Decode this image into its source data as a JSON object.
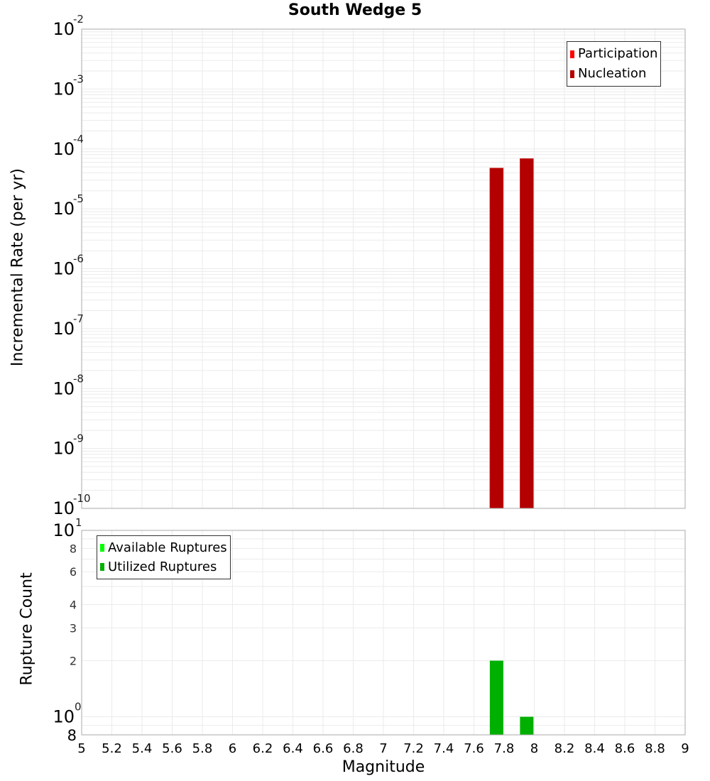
{
  "title": "South Wedge 5",
  "top_plot": {
    "ylabel": "Incremental Rate (per yr)",
    "legend": [
      {
        "label": "Participation",
        "color": "#ff0000"
      },
      {
        "label": "Nucleation",
        "color": "#b30000"
      }
    ]
  },
  "bottom_plot": {
    "ylabel": "Rupture Count",
    "legend": [
      {
        "label": "Available Ruptures",
        "color": "#00ff00"
      },
      {
        "label": "Utilized Ruptures",
        "color": "#00b000"
      }
    ]
  },
  "xlabel": "Magnitude",
  "chart_data": [
    {
      "type": "bar",
      "title": "South Wedge 5",
      "xlabel": "Magnitude",
      "ylabel": "Incremental Rate (per yr)",
      "yscale": "log",
      "xlim": [
        5,
        9
      ],
      "ylim": [
        1e-10,
        0.01
      ],
      "ytick_labels": [
        "10^-2",
        "10^-3",
        "10^-4",
        "10^-5",
        "10^-6",
        "10^-7",
        "10^-8",
        "10^-9",
        "10^-10"
      ],
      "grid": true,
      "legend_position": "upper right",
      "series": [
        {
          "name": "Participation",
          "color": "#ff0000",
          "x": [
            7.75,
            7.95
          ],
          "values": [
            4.8e-05,
            6.9e-05
          ]
        },
        {
          "name": "Nucleation",
          "color": "#b30000",
          "x": [
            7.75,
            7.95
          ],
          "values": [
            4.8e-05,
            6.9e-05
          ]
        }
      ]
    },
    {
      "type": "bar",
      "xlabel": "Magnitude",
      "ylabel": "Rupture Count",
      "yscale": "log",
      "xlim": [
        5,
        9
      ],
      "ylim": [
        0.8,
        10
      ],
      "ytick_labels": [
        "10^1",
        "8",
        "6",
        "4",
        "3",
        "2",
        "10^0",
        "8"
      ],
      "xtick_labels": [
        "5",
        "5.2",
        "5.4",
        "5.6",
        "5.8",
        "6",
        "6.2",
        "6.4",
        "6.6",
        "6.8",
        "7",
        "7.2",
        "7.4",
        "7.6",
        "7.8",
        "8",
        "8.2",
        "8.4",
        "8.6",
        "8.8",
        "9"
      ],
      "grid": true,
      "legend_position": "upper left",
      "series": [
        {
          "name": "Available Ruptures",
          "color": "#00ff00",
          "x": [
            7.75,
            7.95
          ],
          "values": [
            2,
            1
          ]
        },
        {
          "name": "Utilized Ruptures",
          "color": "#00b000",
          "x": [
            7.75,
            7.95
          ],
          "values": [
            2,
            1
          ]
        }
      ]
    }
  ]
}
